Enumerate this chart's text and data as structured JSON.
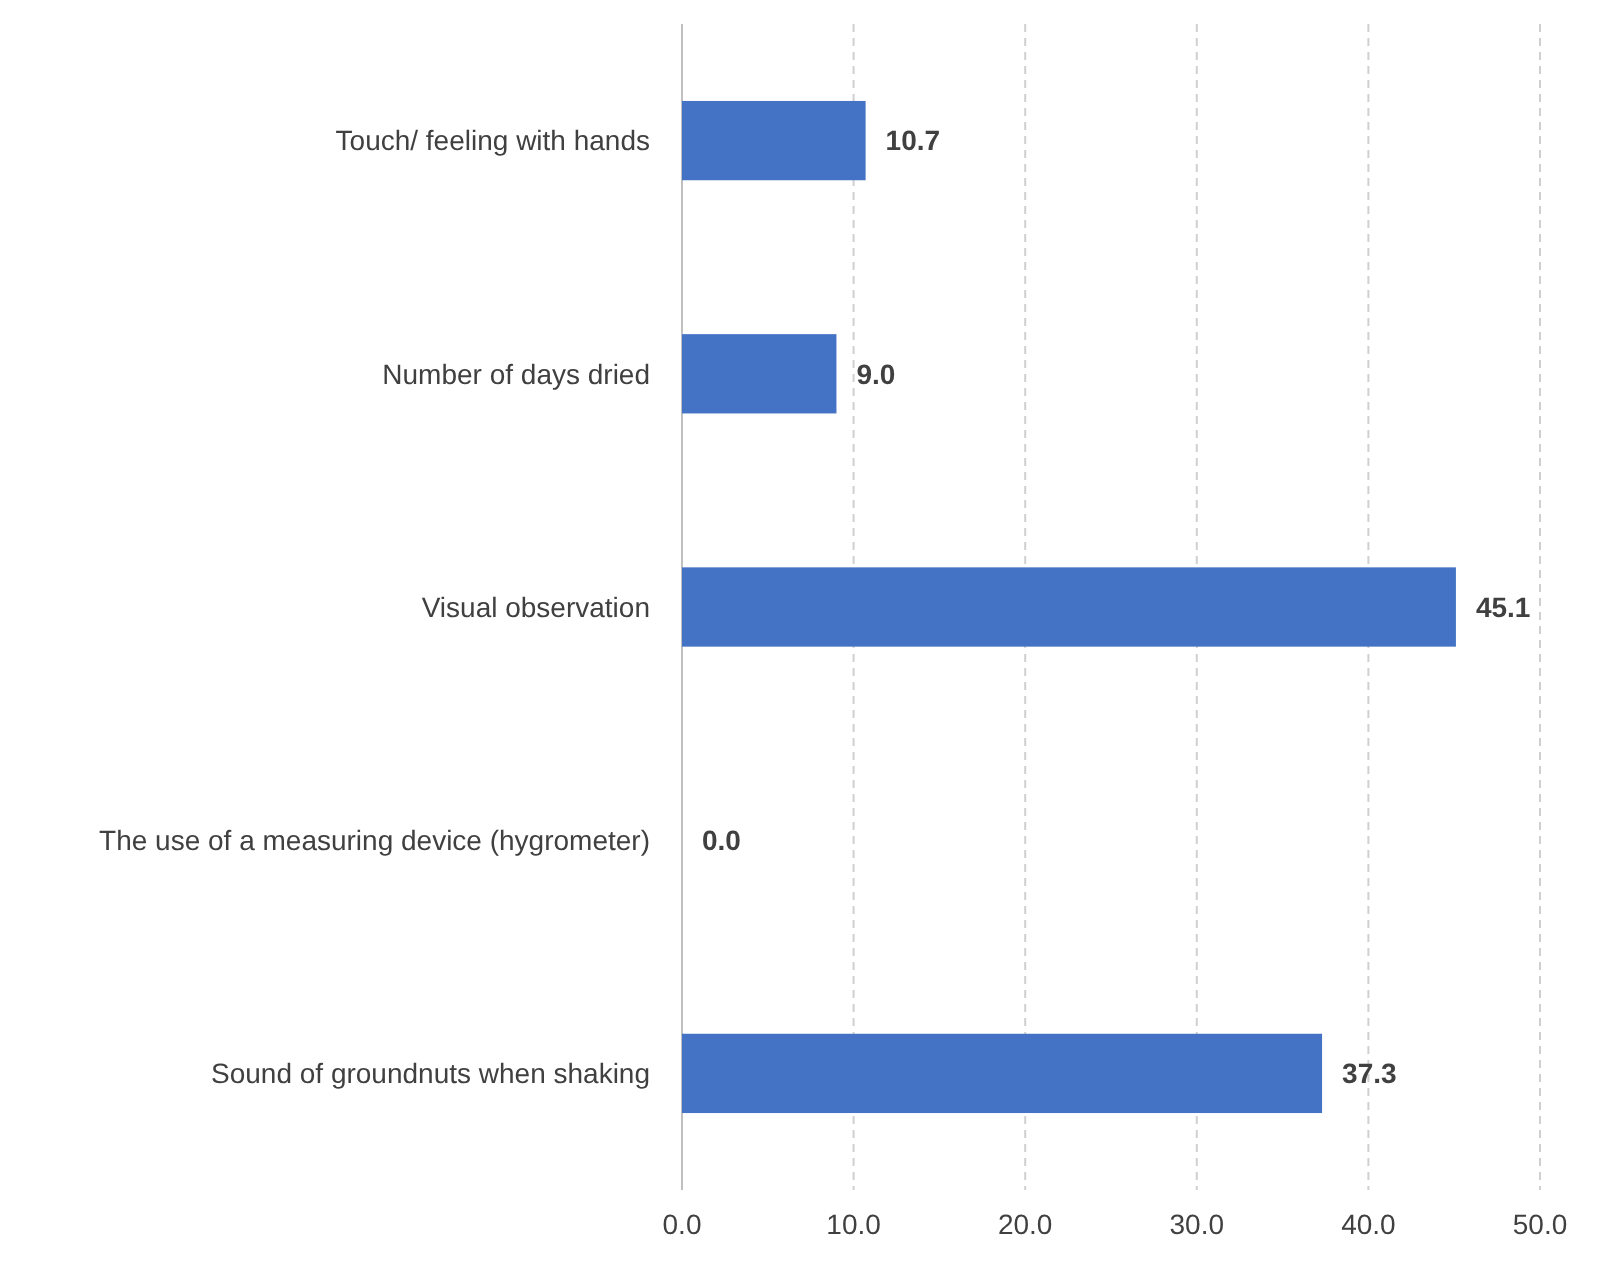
{
  "chart_data": {
    "type": "bar",
    "orientation": "horizontal",
    "categories": [
      "Touch/ feeling with hands",
      "Number of days dried",
      "Visual observation",
      "The use of a measuring device (hygrometer)",
      "Sound of groundnuts when shaking"
    ],
    "values": [
      10.7,
      9.0,
      45.1,
      0.0,
      37.3
    ],
    "value_labels": [
      "10.7",
      "9.0",
      "45.1",
      "0.0",
      "37.3"
    ],
    "color": "#4472c4",
    "xlim": [
      0,
      50
    ],
    "xticks": [
      {
        "value": 0,
        "label": "0.0"
      },
      {
        "value": 10,
        "label": "10.0"
      },
      {
        "value": 20,
        "label": "20.0"
      },
      {
        "value": 30,
        "label": "30.0"
      },
      {
        "value": 40,
        "label": "40.0"
      },
      {
        "value": 50,
        "label": "50.0"
      }
    ],
    "grid": "x"
  }
}
